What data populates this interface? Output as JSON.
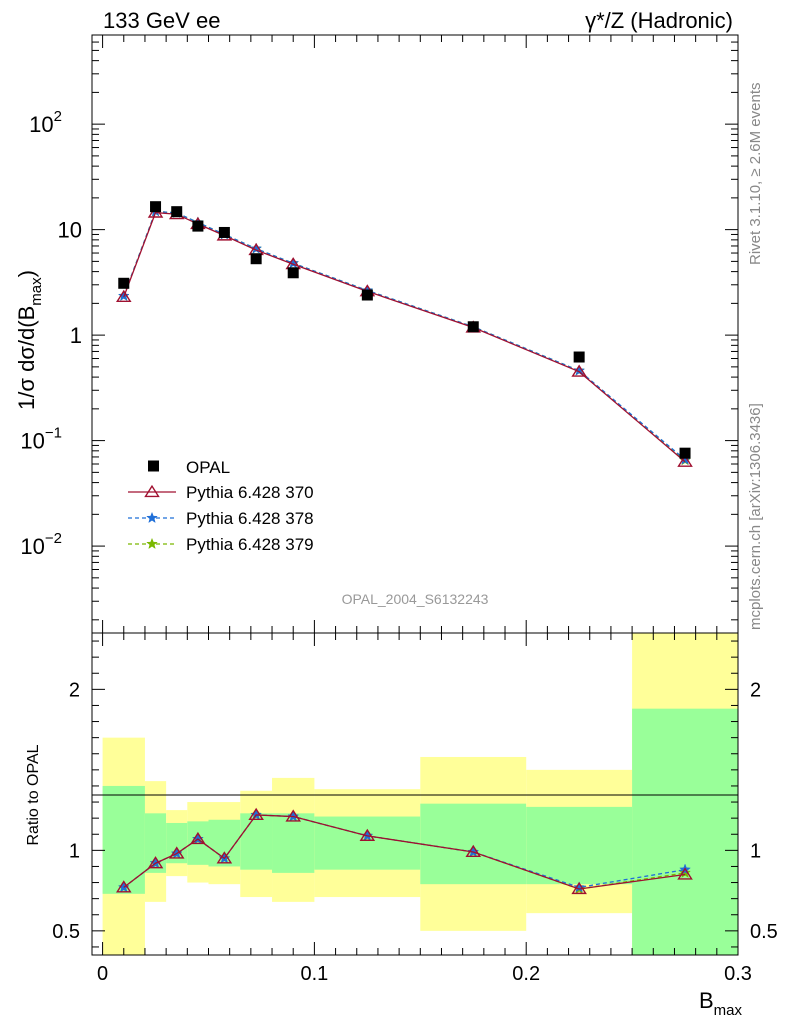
{
  "header": {
    "left_label": "133 GeV ee",
    "right_label": "γ*/Z (Hadronic)"
  },
  "side": {
    "rivet": "Rivet 3.1.10, ≥ 2.6M events",
    "mcplots": "mcplots.cern.ch [arXiv:1306.3436]"
  },
  "analysis_tag": "OPAL_2004_S6132243",
  "chart_data": [
    {
      "type": "scatter",
      "panel": "main",
      "title": "",
      "ylabel": "1/σ dσ/d(B_max)",
      "ylabel_main": "1/σ dσ/d(B",
      "ylabel_sub": "max",
      "ylabel_close": ")",
      "yscale": "log",
      "xlim": [
        -0.005,
        0.3
      ],
      "ylim": [
        0.0015,
        700
      ],
      "y_tick_labels": [
        {
          "value": 0.01,
          "base": "10",
          "exp": "−2"
        },
        {
          "value": 0.1,
          "base": "10",
          "exp": "−1"
        },
        {
          "value": 1,
          "base": "1",
          "exp": ""
        },
        {
          "value": 10,
          "base": "10",
          "exp": ""
        },
        {
          "value": 100,
          "base": "10",
          "exp": "2"
        }
      ],
      "legend_position": "bottom-left",
      "data": {
        "name": "OPAL",
        "x": [
          0.01,
          0.025,
          0.035,
          0.045,
          0.0575,
          0.0725,
          0.09,
          0.125,
          0.175,
          0.225,
          0.275
        ],
        "y": [
          3.1,
          16.5,
          14.8,
          10.8,
          9.4,
          5.3,
          3.9,
          2.4,
          1.2,
          0.62,
          0.076
        ]
      },
      "series": [
        {
          "name": "Pythia 6.428 370",
          "color": "#a01030",
          "marker": "triangle",
          "dash": "solid",
          "x": [
            0.01,
            0.025,
            0.035,
            0.045,
            0.0575,
            0.0725,
            0.09,
            0.125,
            0.175,
            0.225,
            0.275
          ],
          "y": [
            2.3,
            14.5,
            14.0,
            11.3,
            8.8,
            6.4,
            4.7,
            2.6,
            1.18,
            0.45,
            0.063
          ]
        },
        {
          "name": "Pythia 6.428 378",
          "color": "#1f6fd8",
          "marker": "star",
          "dash": "dashed",
          "x": [
            0.01,
            0.025,
            0.035,
            0.045,
            0.0575,
            0.0725,
            0.09,
            0.125,
            0.175,
            0.225,
            0.275
          ],
          "y": [
            2.35,
            14.9,
            14.4,
            11.7,
            9.0,
            6.6,
            4.8,
            2.65,
            1.2,
            0.46,
            0.066
          ]
        },
        {
          "name": "Pythia 6.428 379",
          "color": "#7ab800",
          "marker": "star",
          "dash": "dashed",
          "x": [
            0.01,
            0.025,
            0.035,
            0.045,
            0.0575,
            0.0725,
            0.09,
            0.125,
            0.175,
            0.225,
            0.275
          ],
          "y": [
            2.35,
            14.9,
            14.4,
            11.7,
            9.0,
            6.6,
            4.8,
            2.65,
            1.2,
            0.46,
            0.065
          ]
        }
      ]
    },
    {
      "type": "line",
      "panel": "ratio",
      "ylabel": "Ratio to OPAL",
      "xlabel": "B_max",
      "xlabel_main": "B",
      "xlabel_sub": "max",
      "xlim": [
        -0.005,
        0.3
      ],
      "ylim": [
        0.35,
        2.35
      ],
      "x_ticks": [
        0,
        0.1,
        0.2,
        0.3
      ],
      "x_tick_labels": [
        "0",
        "0.1",
        "0.2",
        "0.3"
      ],
      "y_ticks": [
        0.5,
        1,
        2
      ],
      "y_tick_labels": [
        "0.5",
        "1",
        "2"
      ],
      "bands": {
        "bins": [
          0,
          0.02,
          0.03,
          0.04,
          0.05,
          0.065,
          0.08,
          0.1,
          0.15,
          0.2,
          0.25,
          0.3
        ],
        "green_low": [
          0.73,
          0.86,
          0.92,
          0.91,
          0.9,
          0.88,
          0.86,
          0.88,
          0.79,
          0.79,
          0.35
        ],
        "green_high": [
          1.4,
          1.23,
          1.17,
          1.18,
          1.19,
          1.23,
          1.23,
          1.21,
          1.29,
          1.27,
          1.88
        ],
        "yellow_low": [
          0.35,
          0.68,
          0.84,
          0.8,
          0.79,
          0.71,
          0.68,
          0.71,
          0.5,
          0.61,
          0.35
        ],
        "yellow_high": [
          1.7,
          1.43,
          1.25,
          1.3,
          1.3,
          1.37,
          1.45,
          1.38,
          1.58,
          1.5,
          2.35
        ],
        "green_color": "#99ff99",
        "yellow_color": "#ffff99"
      },
      "series": [
        {
          "name": "Pythia 6.428 370",
          "color": "#a01030",
          "marker": "triangle",
          "dash": "solid",
          "x": [
            0.01,
            0.025,
            0.035,
            0.045,
            0.0575,
            0.0725,
            0.09,
            0.125,
            0.175,
            0.225,
            0.275
          ],
          "y": [
            0.77,
            0.92,
            0.98,
            1.07,
            0.95,
            1.22,
            1.21,
            1.09,
            0.99,
            0.76,
            0.85
          ]
        },
        {
          "name": "Pythia 6.428 378",
          "color": "#1f6fd8",
          "marker": "star",
          "dash": "dashed",
          "x": [
            0.01,
            0.025,
            0.035,
            0.045,
            0.0575,
            0.0725,
            0.09,
            0.125,
            0.175,
            0.225,
            0.275
          ],
          "y": [
            0.77,
            0.92,
            0.98,
            1.07,
            0.95,
            1.22,
            1.21,
            1.09,
            0.99,
            0.77,
            0.88
          ]
        },
        {
          "name": "Pythia 6.428 379",
          "color": "#7ab800",
          "marker": "star",
          "dash": "dashed",
          "x": [
            0.01,
            0.025,
            0.035,
            0.045,
            0.0575,
            0.0725,
            0.09,
            0.125,
            0.175,
            0.225,
            0.275
          ],
          "y": [
            0.77,
            0.92,
            0.98,
            1.07,
            0.95,
            1.22,
            1.21,
            1.09,
            0.99,
            0.76,
            0.86
          ]
        }
      ]
    }
  ]
}
